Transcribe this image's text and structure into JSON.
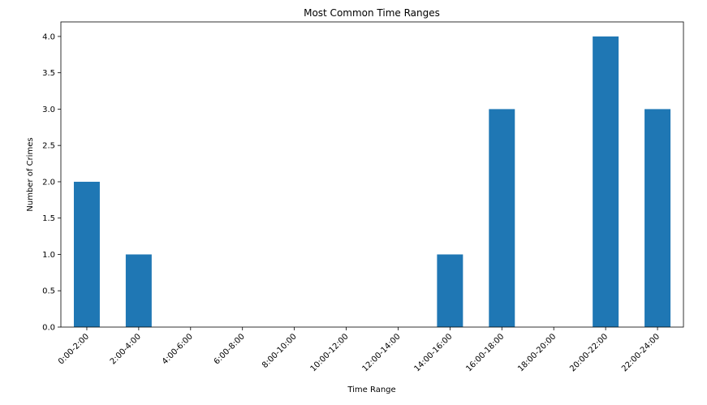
{
  "chart_data": {
    "type": "bar",
    "title": "Most Common Time Ranges",
    "xlabel": "Time Range",
    "ylabel": "Number of Crimes",
    "categories": [
      "0:00-2:00",
      "2:00-4:00",
      "4:00-6:00",
      "6:00-8:00",
      "8:00-10:00",
      "10:00-12:00",
      "12:00-14:00",
      "14:00-16:00",
      "16:00-18:00",
      "18:00-20:00",
      "20:00-22:00",
      "22:00-24:00"
    ],
    "values": [
      2,
      1,
      0,
      0,
      0,
      0,
      0,
      1,
      3,
      0,
      4,
      3
    ],
    "ylim": [
      0,
      4.2
    ],
    "yticks": [
      "0.0",
      "0.5",
      "1.0",
      "1.5",
      "2.0",
      "2.5",
      "3.0",
      "3.5",
      "4.0"
    ],
    "grid": false,
    "bar_color": "#1f77b4"
  }
}
